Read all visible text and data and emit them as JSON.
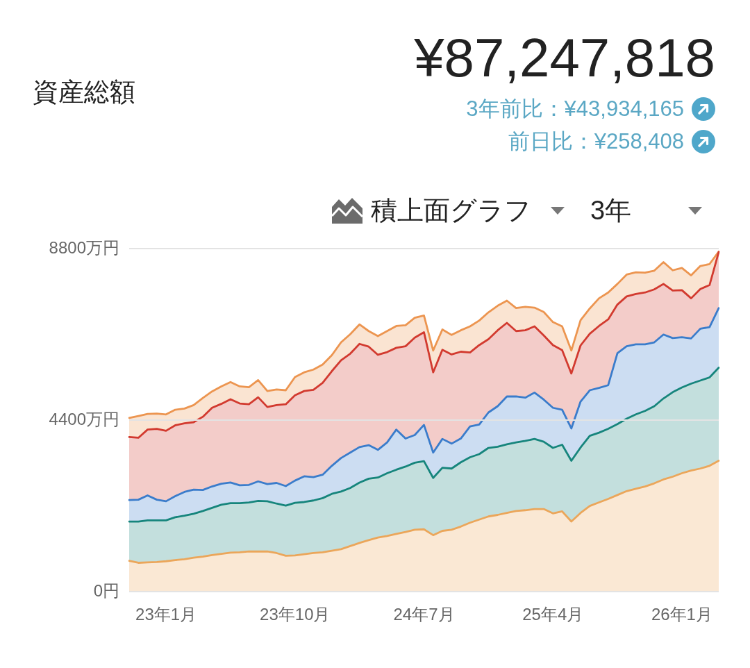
{
  "chart_data": {
    "type": "area",
    "title": "資産総額",
    "subtitle": "¥87,247,818",
    "annotations": [
      "3年前比：¥43,934,165",
      "前日比：¥258,408",
      "積上面グラフ",
      "3年"
    ],
    "stacked": true,
    "categories": [
      null,
      null,
      null,
      null,
      "23年1月",
      null,
      null,
      null,
      null,
      null,
      null,
      null,
      null,
      null,
      null,
      null,
      null,
      null,
      "23年10月",
      null,
      null,
      null,
      null,
      null,
      null,
      null,
      null,
      null,
      null,
      null,
      null,
      null,
      "24年7月",
      null,
      null,
      null,
      null,
      null,
      null,
      null,
      null,
      null,
      null,
      null,
      null,
      null,
      "25年4月",
      null,
      null,
      null,
      null,
      null,
      null,
      null,
      null,
      null,
      null,
      null,
      null,
      null,
      "26年1月",
      null,
      null,
      null,
      null
    ],
    "series": [
      {
        "color": "#eba65a",
        "values": [
          790,
          740,
          750,
          760,
          780,
          810,
          830,
          870,
          900,
          940,
          970,
          1000,
          1010,
          1030,
          1030,
          1030,
          990,
          920,
          930,
          960,
          990,
          1010,
          1050,
          1090,
          1170,
          1250,
          1320,
          1390,
          1430,
          1480,
          1530,
          1590,
          1600,
          1450,
          1560,
          1590,
          1670,
          1770,
          1850,
          1930,
          1970,
          2020,
          2070,
          2090,
          2120,
          2120,
          2010,
          2060,
          1800,
          2020,
          2200,
          2290,
          2380,
          2480,
          2580,
          2640,
          2700,
          2780,
          2880,
          2950,
          3040,
          3110,
          3160,
          3230,
          3360
        ]
      },
      {
        "color": "#16857c",
        "values": [
          1010,
          1060,
          1080,
          1070,
          1050,
          1100,
          1120,
          1130,
          1170,
          1210,
          1260,
          1270,
          1260,
          1260,
          1300,
          1290,
          1270,
          1290,
          1350,
          1340,
          1350,
          1390,
          1460,
          1480,
          1490,
          1550,
          1580,
          1540,
          1610,
          1650,
          1680,
          1720,
          1750,
          1470,
          1620,
          1570,
          1650,
          1680,
          1680,
          1760,
          1750,
          1760,
          1760,
          1780,
          1800,
          1730,
          1680,
          1710,
          1560,
          1680,
          1800,
          1790,
          1800,
          1820,
          1860,
          1910,
          1940,
          1980,
          2080,
          2170,
          2200,
          2230,
          2260,
          2270,
          2390
        ]
      },
      {
        "color": "#3a7ccb",
        "values": [
          550,
          560,
          640,
          530,
          490,
          540,
          610,
          620,
          540,
          550,
          540,
          530,
          460,
          450,
          500,
          440,
          530,
          500,
          570,
          660,
          600,
          600,
          720,
          860,
          910,
          910,
          860,
          710,
          790,
          1030,
          720,
          710,
          930,
          650,
          740,
          640,
          610,
          790,
          760,
          910,
          1040,
          1230,
          1180,
          1110,
          1190,
          1080,
          1030,
          900,
          830,
          1180,
          1170,
          1150,
          1120,
          1820,
          1860,
          1800,
          1710,
          1640,
          1640,
          1390,
          1290,
          1160,
          1330,
          1290,
          1530
        ]
      },
      {
        "color": "#d23a2f",
        "values": [
          1620,
          1590,
          1690,
          1820,
          1810,
          1820,
          1760,
          1730,
          1880,
          2020,
          2050,
          2140,
          2100,
          2070,
          2160,
          1980,
          2000,
          2100,
          2190,
          2190,
          2240,
          2360,
          2430,
          2510,
          2540,
          2650,
          2530,
          2440,
          2320,
          2100,
          2370,
          2500,
          2380,
          2060,
          2290,
          2290,
          2230,
          1900,
          2040,
          1880,
          1950,
          1890,
          1680,
          1730,
          1700,
          1650,
          1610,
          1530,
          1410,
          1440,
          1450,
          1590,
          1690,
          1250,
          1280,
          1290,
          1330,
          1360,
          1300,
          1220,
          1210,
          1030,
          1020,
          1080,
          1440
        ]
      },
      {
        "color": "#ec9550",
        "values": [
          490,
          560,
          400,
          390,
          420,
          400,
          380,
          440,
          480,
          420,
          450,
          440,
          440,
          440,
          440,
          410,
          400,
          360,
          470,
          480,
          520,
          470,
          410,
          460,
          500,
          500,
          400,
          480,
          540,
          560,
          540,
          510,
          430,
          560,
          520,
          500,
          550,
          670,
          630,
          690,
          630,
          570,
          590,
          600,
          480,
          600,
          590,
          610,
          590,
          650,
          650,
          710,
          690,
          530,
          560,
          560,
          510,
          480,
          560,
          520,
          570,
          590,
          590,
          540,
          10
        ]
      }
    ],
    "ylim": [
      0,
      8800
    ],
    "yticks": [
      {
        "value": 0,
        "label": "0円"
      },
      {
        "value": 4400,
        "label": "4400万円"
      },
      {
        "value": 8800,
        "label": "8800万円"
      }
    ],
    "grid": "y",
    "marker": "none"
  }
}
